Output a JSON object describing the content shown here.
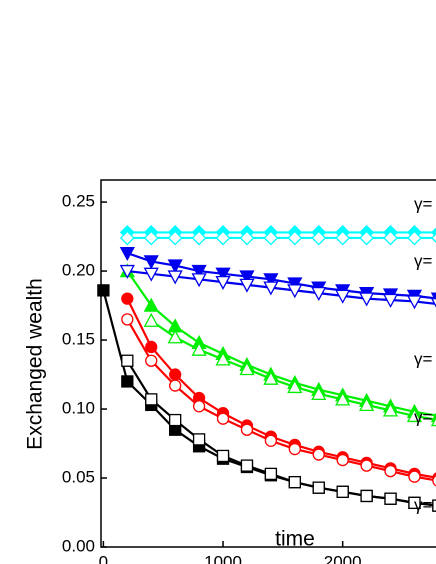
{
  "chart_data": {
    "type": "line",
    "xlabel": "time",
    "ylabel": "Exchanged wealth",
    "xlim": [
      -20,
      2780
    ],
    "ylim": [
      0,
      0.266
    ],
    "xticks": [
      0,
      1000,
      2000
    ],
    "yticks": [
      {
        "value": 0,
        "label": "0.00"
      },
      {
        "value": 0.05,
        "label": "0.05"
      },
      {
        "value": 0.1,
        "label": "0.10"
      },
      {
        "value": 0.15,
        "label": "0.15"
      },
      {
        "value": 0.2,
        "label": "0.20"
      },
      {
        "value": 0.25,
        "label": "0.25"
      }
    ],
    "annotations": [
      "γ=",
      "γ=",
      "γ=",
      "γ=",
      "γ="
    ],
    "series": [
      {
        "color": "#000000",
        "marker": "square",
        "filled": true,
        "x": [
          0,
          200,
          400,
          600,
          800,
          1000,
          1200,
          1400,
          1600,
          1800,
          2000,
          2200,
          2400,
          2600,
          2800
        ],
        "values": [
          0.186,
          0.12,
          0.103,
          0.085,
          0.073,
          0.064,
          0.058,
          0.052,
          0.047,
          0.043,
          0.04,
          0.037,
          0.035,
          0.032,
          0.03
        ]
      },
      {
        "color": "#000000",
        "marker": "square",
        "filled": false,
        "x": [
          200,
          400,
          600,
          800,
          1000,
          1200,
          1400,
          1600,
          1800,
          2000,
          2200,
          2400,
          2600,
          2800
        ],
        "values": [
          0.135,
          0.107,
          0.092,
          0.078,
          0.066,
          0.059,
          0.053,
          0.047,
          0.043,
          0.04,
          0.037,
          0.035,
          0.032,
          0.03
        ]
      },
      {
        "color": "#ff0000",
        "marker": "circle",
        "filled": true,
        "x": [
          200,
          400,
          600,
          800,
          1000,
          1200,
          1400,
          1600,
          1800,
          2000,
          2200,
          2400,
          2600,
          2800
        ],
        "values": [
          0.18,
          0.145,
          0.125,
          0.108,
          0.097,
          0.088,
          0.08,
          0.074,
          0.069,
          0.065,
          0.061,
          0.057,
          0.053,
          0.05
        ]
      },
      {
        "color": "#ff0000",
        "marker": "circle",
        "filled": false,
        "x": [
          200,
          400,
          600,
          800,
          1000,
          1200,
          1400,
          1600,
          1800,
          2000,
          2200,
          2400,
          2600,
          2800
        ],
        "values": [
          0.165,
          0.135,
          0.117,
          0.102,
          0.093,
          0.085,
          0.077,
          0.071,
          0.067,
          0.063,
          0.059,
          0.055,
          0.051,
          0.048
        ]
      },
      {
        "color": "#00ee00",
        "marker": "triangle-up",
        "filled": true,
        "x": [
          200,
          400,
          600,
          800,
          1000,
          1200,
          1400,
          1600,
          1800,
          2000,
          2200,
          2400,
          2600,
          2800
        ],
        "values": [
          0.2,
          0.175,
          0.16,
          0.148,
          0.14,
          0.132,
          0.125,
          0.119,
          0.114,
          0.11,
          0.106,
          0.102,
          0.098,
          0.095
        ]
      },
      {
        "color": "#00ee00",
        "marker": "triangle-up",
        "filled": false,
        "x": [
          400,
          600,
          800,
          1000,
          1200,
          1400,
          1600,
          1800,
          2000,
          2200,
          2400,
          2600,
          2800
        ],
        "values": [
          0.164,
          0.152,
          0.143,
          0.136,
          0.129,
          0.122,
          0.116,
          0.111,
          0.107,
          0.103,
          0.099,
          0.095,
          0.092
        ]
      },
      {
        "color": "#0000ee",
        "marker": "triangle-down",
        "filled": true,
        "x": [
          200,
          400,
          600,
          800,
          1000,
          1200,
          1400,
          1600,
          1800,
          2000,
          2200,
          2400,
          2600,
          2800
        ],
        "values": [
          0.213,
          0.207,
          0.204,
          0.2,
          0.198,
          0.196,
          0.194,
          0.191,
          0.188,
          0.186,
          0.184,
          0.183,
          0.182,
          0.18
        ]
      },
      {
        "color": "#0000ee",
        "marker": "triangle-down",
        "filled": false,
        "x": [
          200,
          400,
          600,
          800,
          1000,
          1200,
          1400,
          1600,
          1800,
          2000,
          2200,
          2400,
          2600,
          2800
        ],
        "values": [
          0.2,
          0.198,
          0.196,
          0.194,
          0.192,
          0.19,
          0.188,
          0.186,
          0.184,
          0.182,
          0.18,
          0.179,
          0.178,
          0.176
        ]
      },
      {
        "color": "#00ffff",
        "marker": "diamond",
        "filled": true,
        "x": [
          200,
          400,
          600,
          800,
          1000,
          1200,
          1400,
          1600,
          1800,
          2000,
          2200,
          2400,
          2600,
          2800
        ],
        "values": [
          0.228,
          0.228,
          0.228,
          0.228,
          0.228,
          0.228,
          0.228,
          0.228,
          0.228,
          0.228,
          0.228,
          0.228,
          0.228,
          0.228
        ]
      },
      {
        "color": "#00ffff",
        "marker": "diamond",
        "filled": false,
        "x": [
          200,
          400,
          600,
          800,
          1000,
          1200,
          1400,
          1600,
          1800,
          2000,
          2200,
          2400,
          2600,
          2800
        ],
        "values": [
          0.224,
          0.224,
          0.224,
          0.224,
          0.224,
          0.224,
          0.224,
          0.224,
          0.224,
          0.224,
          0.224,
          0.224,
          0.224,
          0.224
        ]
      }
    ]
  }
}
